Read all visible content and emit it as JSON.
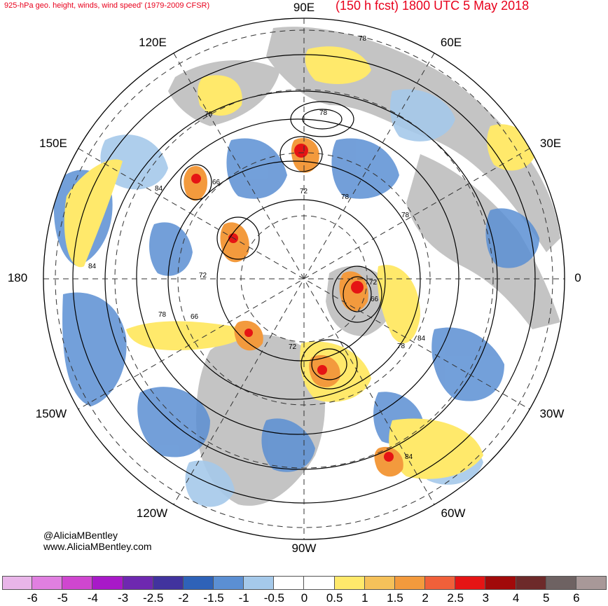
{
  "title": {
    "left": "925-hPa geo. height, winds, wind speed' (1979-2009 CFSR)",
    "right": "(150 h fcst) 1800 UTC 5 May 2018"
  },
  "longitude_labels": {
    "north": "90E",
    "ne": "60E",
    "nne": "30E",
    "east": "0",
    "se": "30W",
    "sse": "60W",
    "south": "90W",
    "ssw": "120W",
    "sw": "150W",
    "west": "180",
    "nw": "150E",
    "nnw": "120E"
  },
  "contour_labels": [
    "78",
    "78",
    "78",
    "66",
    "72",
    "78",
    "78",
    "84",
    "84",
    "72",
    "78",
    "66",
    "72",
    "78",
    "66",
    "84",
    "72",
    "84"
  ],
  "credit": {
    "handle": "@AliciaMBentley",
    "website": "www.AliciaMBentley.com"
  },
  "colorbar": {
    "ticks": [
      "-6",
      "-5",
      "-4",
      "-3",
      "-2.5",
      "-2",
      "-1.5",
      "-1",
      "-0.5",
      "0",
      "0.5",
      "1",
      "1.5",
      "2",
      "2.5",
      "3",
      "4",
      "5",
      "6"
    ],
    "colors": [
      "#e9b5e9",
      "#e07fe0",
      "#cf46cf",
      "#a819c8",
      "#6e28b0",
      "#41339e",
      "#2e62b8",
      "#5b8fd3",
      "#a5c9ea",
      "#ffffff",
      "#ffffff",
      "#ffe96b",
      "#f5c15a",
      "#f39a3d",
      "#f0603a",
      "#e51414",
      "#a10a0a",
      "#6d2a2a",
      "#6e6262",
      "#a89898"
    ]
  },
  "colors": {
    "negative_anomaly": "#5b8fd3",
    "positive_anomaly": "#f5c15a",
    "land": "#bfbfbf",
    "title": "#e8001c"
  }
}
